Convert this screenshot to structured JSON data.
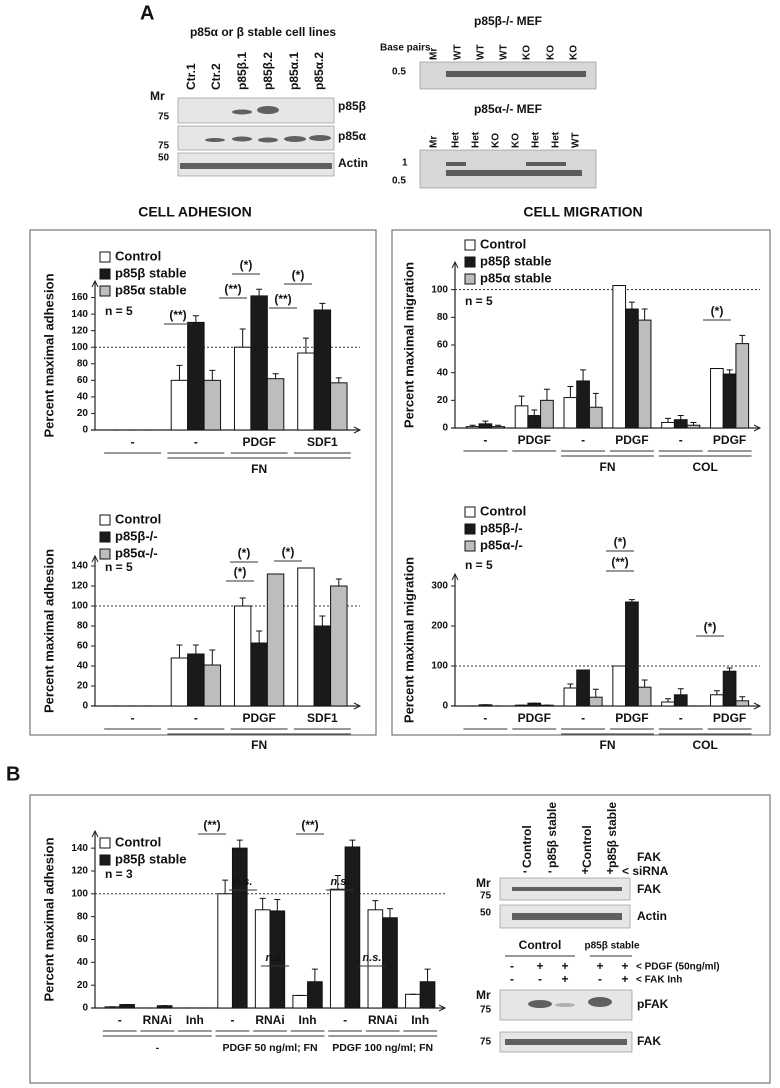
{
  "panel_a": "A",
  "panel_b": "B",
  "blots": {
    "left": {
      "title": "p85α or β stable cell lines",
      "mr": "Mr",
      "lanes": [
        "Ctr.1",
        "Ctr.2",
        "p85β.1",
        "p85β.2",
        "p85α.1",
        "p85α.2"
      ],
      "rows": [
        {
          "marker": "75",
          "label": "p85β"
        },
        {
          "marker": "75",
          "label": "p85α"
        },
        {
          "marker": "50",
          "label": "Actin"
        }
      ]
    },
    "right_top": {
      "title": "p85β-/- MEF",
      "base_pairs": "Base pairs",
      "mr": "Mr",
      "lanes": [
        "WT",
        "WT",
        "WT",
        "KO",
        "KO",
        "KO"
      ],
      "markers": [
        "0.5"
      ]
    },
    "right_bottom": {
      "title": "p85α-/- MEF",
      "mr": "Mr",
      "lanes": [
        "Het",
        "Het",
        "KO",
        "KO",
        "Het",
        "Het",
        "WT"
      ],
      "markers": [
        "1",
        "0.5"
      ]
    },
    "fak": {
      "lanes": [
        "Control",
        "p85β stable",
        "Control",
        "p85β stable"
      ],
      "target": "FAK",
      "signs": [
        "-",
        "-",
        "+",
        "+"
      ],
      "sirna": "< siRNA",
      "mr": "Mr",
      "rows": [
        {
          "marker": "75",
          "label": "FAK"
        },
        {
          "marker": "50",
          "label": "Actin"
        }
      ]
    },
    "pfak": {
      "groups": [
        "Control",
        "p85β stable"
      ],
      "pdgf": [
        "-",
        "+",
        "+",
        "+",
        "+"
      ],
      "pdgf_label": "< PDGF (50ng/ml)",
      "inh": [
        "-",
        "-",
        "+",
        "-",
        "+"
      ],
      "inh_label": "< FAK Inh",
      "mr": "Mr",
      "rows": [
        {
          "marker": "75",
          "label": "pFAK"
        },
        {
          "marker": "75",
          "label": "FAK"
        }
      ]
    }
  },
  "chart_data": [
    {
      "type": "bar",
      "title": "CELL ADHESION",
      "y_label": "Percent maximal adhesion",
      "n_label": "n = 5",
      "categories": [
        "-",
        "-",
        "PDGF",
        "SDF1"
      ],
      "group_labels": [
        "FN"
      ],
      "series": [
        {
          "name": "Control",
          "color": "#ffffff",
          "values": [
            0,
            60,
            100,
            93
          ],
          "errors": [
            0,
            18,
            22,
            18
          ]
        },
        {
          "name": "p85β stable",
          "color": "#1a1a1a",
          "values": [
            0,
            130,
            162,
            145
          ],
          "errors": [
            0,
            8,
            8,
            8
          ]
        },
        {
          "name": "p85α stable",
          "color": "#bdbdbd",
          "values": [
            0,
            60,
            62,
            57
          ],
          "errors": [
            0,
            12,
            6,
            6
          ]
        }
      ],
      "ylim": [
        0,
        180
      ],
      "yticks": [
        0,
        20,
        40,
        60,
        80,
        100,
        120,
        140,
        160
      ],
      "reference_line": 100,
      "annotations": [
        "(**)",
        "(**)",
        "(*)",
        "(**)",
        "(*)"
      ]
    },
    {
      "type": "bar",
      "title": "CELL MIGRATION",
      "y_label": "Percent maximal migration",
      "n_label": "n = 5",
      "categories": [
        "-",
        "PDGF",
        "-",
        "PDGF",
        "-",
        "PDGF"
      ],
      "group_labels": [
        "FN",
        "COL"
      ],
      "series": [
        {
          "name": "Control",
          "color": "#ffffff",
          "values": [
            1,
            16,
            22,
            103,
            4,
            43
          ],
          "errors": [
            1,
            7,
            8,
            0,
            3,
            0
          ]
        },
        {
          "name": "p85β stable",
          "color": "#1a1a1a",
          "values": [
            3,
            9,
            34,
            86,
            6,
            39
          ],
          "errors": [
            2,
            4,
            8,
            5,
            3,
            3
          ]
        },
        {
          "name": "p85α stable",
          "color": "#bdbdbd",
          "values": [
            1,
            20,
            15,
            78,
            2,
            61
          ],
          "errors": [
            1,
            8,
            10,
            8,
            2,
            6
          ]
        }
      ],
      "ylim": [
        0,
        120
      ],
      "yticks": [
        0,
        20,
        40,
        60,
        80,
        100
      ],
      "reference_line": 100,
      "annotations": [
        "(*)"
      ]
    },
    {
      "type": "bar",
      "y_label": "Percent maximal adhesion",
      "n_label": "n = 5",
      "categories": [
        "-",
        "-",
        "PDGF",
        "SDF1"
      ],
      "group_labels": [
        "FN"
      ],
      "series": [
        {
          "name": "Control",
          "color": "#ffffff",
          "values": [
            0,
            48,
            100,
            138
          ],
          "errors": [
            0,
            13,
            8,
            0
          ]
        },
        {
          "name": "p85β-/-",
          "color": "#1a1a1a",
          "values": [
            0,
            52,
            63,
            80
          ],
          "errors": [
            0,
            9,
            12,
            10
          ]
        },
        {
          "name": "p85α-/-",
          "color": "#bdbdbd",
          "values": [
            0,
            41,
            132,
            120
          ],
          "errors": [
            0,
            15,
            0,
            7
          ]
        }
      ],
      "ylim": [
        0,
        150
      ],
      "yticks": [
        0,
        20,
        40,
        60,
        80,
        100,
        120,
        140
      ],
      "reference_line": 100,
      "annotations": [
        "(*)",
        "(*)",
        "(*)"
      ]
    },
    {
      "type": "bar",
      "y_label": "Percent maximal migration",
      "n_label": "n = 5",
      "categories": [
        "-",
        "PDGF",
        "-",
        "PDGF",
        "-",
        "PDGF"
      ],
      "group_labels": [
        "FN",
        "COL"
      ],
      "series": [
        {
          "name": "Control",
          "color": "#ffffff",
          "values": [
            0,
            2,
            45,
            100,
            10,
            28
          ],
          "errors": [
            0,
            0,
            10,
            0,
            8,
            10
          ]
        },
        {
          "name": "p85β-/-",
          "color": "#1a1a1a",
          "values": [
            3,
            7,
            90,
            260,
            28,
            87
          ],
          "errors": [
            0,
            0,
            0,
            6,
            15,
            8
          ]
        },
        {
          "name": "p85α-/-",
          "color": "#bdbdbd",
          "values": [
            0,
            2,
            22,
            47,
            0,
            13
          ],
          "errors": [
            0,
            0,
            20,
            18,
            0,
            10
          ]
        }
      ],
      "ylim": [
        0,
        330
      ],
      "yticks": [
        0,
        100,
        200,
        300
      ],
      "reference_line": 100,
      "annotations": [
        "(*)",
        "(**)",
        "(*)"
      ]
    },
    {
      "type": "bar",
      "y_label": "Percent maximal adhesion",
      "n_label": "n = 3",
      "categories": [
        "-",
        "RNAi",
        "Inh",
        "-",
        "RNAi",
        "Inh",
        "-",
        "RNAi",
        "Inh"
      ],
      "group_labels": [
        "-",
        "PDGF 50 ng/ml; FN",
        "PDGF 100 ng/ml; FN"
      ],
      "series": [
        {
          "name": "Control",
          "color": "#ffffff",
          "values": [
            1,
            0,
            0,
            100,
            86,
            11,
            104,
            86,
            12
          ],
          "errors": [
            0,
            0,
            0,
            12,
            10,
            0,
            12,
            8,
            0
          ]
        },
        {
          "name": "p85β stable",
          "color": "#1a1a1a",
          "values": [
            3,
            2,
            0,
            140,
            85,
            23,
            141,
            79,
            23
          ],
          "errors": [
            0,
            0,
            0,
            7,
            10,
            11,
            6,
            8,
            11
          ]
        }
      ],
      "ylim": [
        0,
        155
      ],
      "yticks": [
        0,
        20,
        40,
        60,
        80,
        100,
        120,
        140
      ],
      "reference_line": 100,
      "annotations": [
        "(**)",
        "n.s.",
        "n.s.",
        "(**)",
        "n.s.",
        "n.s."
      ]
    }
  ]
}
